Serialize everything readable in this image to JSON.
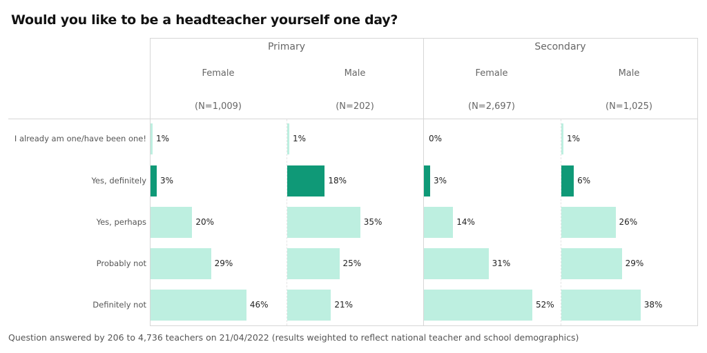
{
  "chart_data": {
    "type": "bar",
    "orientation": "horizontal",
    "title": "Would you like to be a headteacher yourself one day?",
    "categories": [
      "I already am one/have been one!",
      "Yes, definitely",
      "Yes, perhaps",
      "Probably not",
      "Definitely not"
    ],
    "groups": [
      "Primary",
      "Secondary"
    ],
    "panels": [
      {
        "group": "Primary",
        "name": "Female",
        "n": "(N=1,009)",
        "values": [
          1,
          3,
          20,
          29,
          46
        ]
      },
      {
        "group": "Primary",
        "name": "Male",
        "n": "(N=202)",
        "values": [
          1,
          18,
          35,
          25,
          21
        ]
      },
      {
        "group": "Secondary",
        "name": "Female",
        "n": "(N=2,697)",
        "values": [
          0,
          3,
          14,
          31,
          52
        ]
      },
      {
        "group": "Secondary",
        "name": "Male",
        "n": "(N=1,025)",
        "values": [
          1,
          6,
          26,
          29,
          38
        ]
      }
    ],
    "unit": "%",
    "highlight_category": "Yes, definitely",
    "colors": {
      "default": "#BDEFE0",
      "highlight": "#0F9977"
    },
    "footnote": "Question answered by 206 to 4,736 teachers on 21/04/2022 (results weighted to reflect national teacher and school demographics)"
  }
}
